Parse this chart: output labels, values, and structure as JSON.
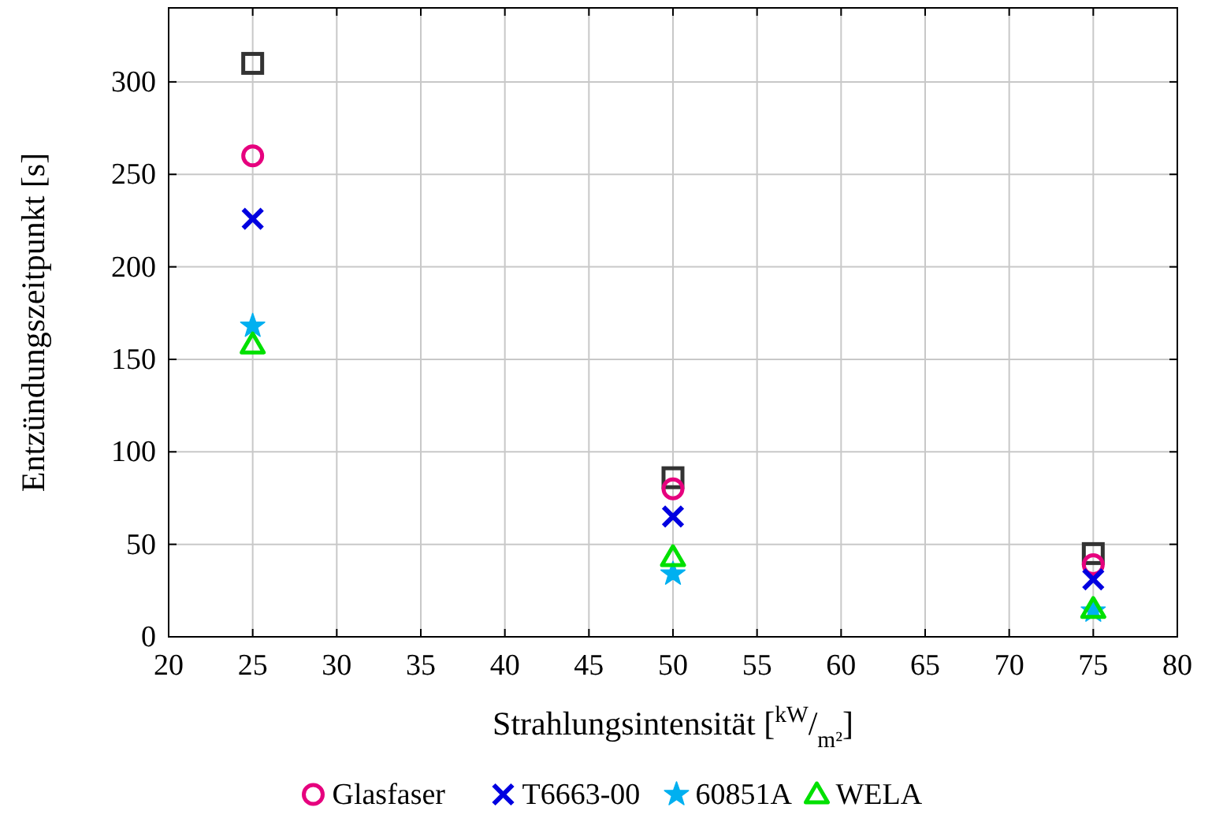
{
  "chart_data": {
    "type": "scatter",
    "xlabel": "Strahlungsintensität [$^{kW}$/$_{m²}$]",
    "ylabel": "Entzündungszeitpunkt [s]",
    "x": [
      25,
      50,
      75
    ],
    "xlim": [
      20,
      80
    ],
    "xticks": [
      20,
      25,
      30,
      35,
      40,
      45,
      50,
      55,
      60,
      65,
      70,
      75,
      80
    ],
    "ylim": [
      0,
      340
    ],
    "yticks": [
      0,
      50,
      100,
      150,
      200,
      250,
      300
    ],
    "grid": true,
    "legend": "bottom",
    "series": [
      {
        "color": "#333333",
        "marker": "square",
        "values": [
          310,
          86,
          45
        ]
      },
      {
        "name": "Glasfaser",
        "color": "#e6007e",
        "marker": "circle",
        "values": [
          260,
          80,
          39
        ]
      },
      {
        "name": "T6663-00",
        "color": "#0000e0",
        "marker": "cross",
        "values": [
          226,
          65,
          31
        ]
      },
      {
        "name": "60851A",
        "color": "#00b0f0",
        "marker": "star",
        "values": [
          168,
          34,
          14
        ]
      },
      {
        "name": "WELA",
        "color": "#00e000",
        "marker": "triangle",
        "values": [
          158,
          43,
          15
        ]
      }
    ]
  }
}
